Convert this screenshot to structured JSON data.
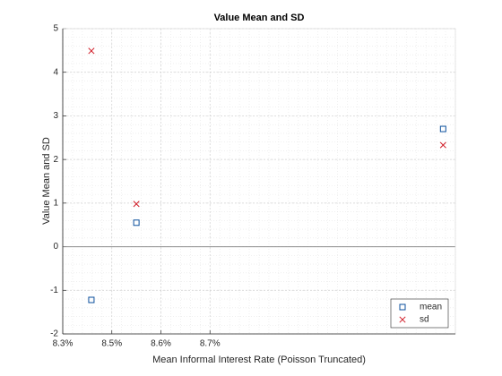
{
  "chart_data": {
    "type": "scatter",
    "title": "Value Mean and SD",
    "x_label": "Mean Informal Interest Rate (Poisson Truncated)",
    "y_label": "Value Mean and SD",
    "xlim": [
      8.34,
      9.3
    ],
    "xticks": [
      {
        "value": 8.34,
        "label": "8.3%"
      },
      {
        "value": 8.46,
        "label": "8.5%"
      },
      {
        "value": 8.58,
        "label": "8.6%"
      },
      {
        "value": 8.7,
        "label": "8.7%"
      }
    ],
    "ylim": [
      -2,
      5
    ],
    "yticks": [
      -2,
      -1,
      0,
      1,
      2,
      3,
      4,
      5
    ],
    "grid": true,
    "minor_grid": true,
    "reference_line": 0,
    "legend": "southeast",
    "series": [
      {
        "name": "mean",
        "color": "#0b4f9c",
        "marker": "square",
        "x": [
          8.41,
          8.52,
          9.27
        ],
        "values": [
          -1.22,
          0.55,
          2.7
        ]
      },
      {
        "name": "sd",
        "color": "#d11f2a",
        "marker": "x",
        "x": [
          8.41,
          8.52,
          9.27
        ],
        "values": [
          4.49,
          0.98,
          2.33
        ]
      }
    ]
  }
}
